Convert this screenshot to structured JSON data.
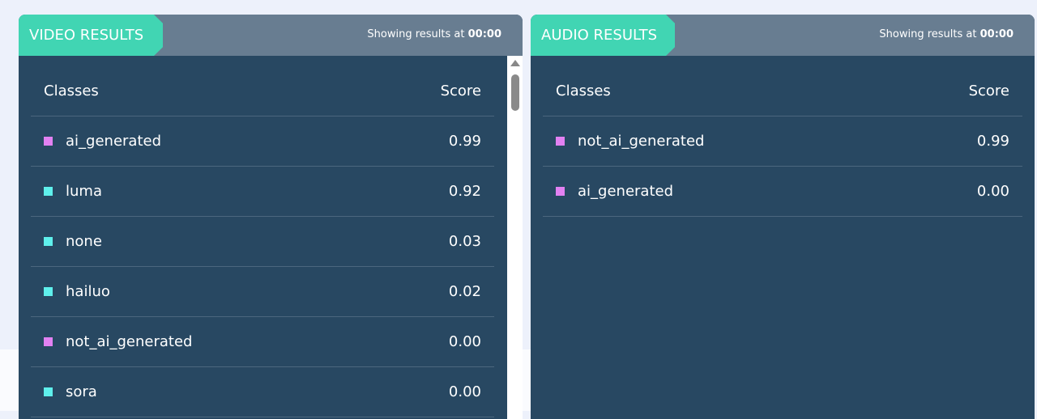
{
  "colors": {
    "ai_generated": "#e281f2",
    "model": "#5ff0ec"
  },
  "video": {
    "title": "VIDEO RESULTS",
    "showing_prefix": "Showing results at",
    "time": "00:00",
    "col_classes": "Classes",
    "col_score": "Score",
    "rows": [
      {
        "name": "ai_generated",
        "score": "0.99",
        "color": "#e281f2"
      },
      {
        "name": "luma",
        "score": "0.92",
        "color": "#5ff0ec"
      },
      {
        "name": "none",
        "score": "0.03",
        "color": "#5ff0ec"
      },
      {
        "name": "hailuo",
        "score": "0.02",
        "color": "#5ff0ec"
      },
      {
        "name": "not_ai_generated",
        "score": "0.00",
        "color": "#e281f2"
      },
      {
        "name": "sora",
        "score": "0.00",
        "color": "#5ff0ec"
      }
    ]
  },
  "audio": {
    "title": "AUDIO RESULTS",
    "showing_prefix": "Showing results at",
    "time": "00:00",
    "col_classes": "Classes",
    "col_score": "Score",
    "rows": [
      {
        "name": "not_ai_generated",
        "score": "0.99",
        "color": "#e281f2"
      },
      {
        "name": "ai_generated",
        "score": "0.00",
        "color": "#e281f2"
      }
    ]
  }
}
